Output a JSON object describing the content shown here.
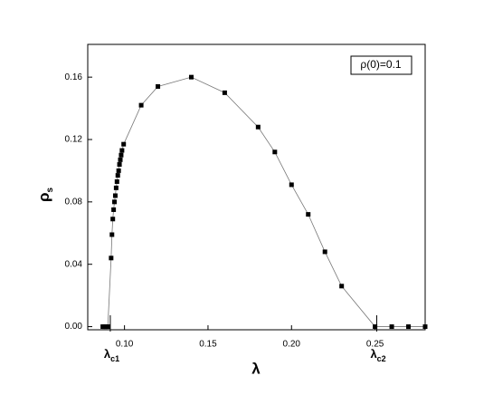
{
  "chart_data": {
    "type": "scatter-line",
    "x_label": "λ",
    "y_label": {
      "text": "ρ",
      "subscript": "s"
    },
    "legend_text": "ρ(0)=0.1",
    "xlim": [
      0.078,
      0.28
    ],
    "ylim": [
      -0.002,
      0.181
    ],
    "xticks": [
      {
        "value": 0.1,
        "label": "0.10"
      },
      {
        "value": 0.15,
        "label": "0.15"
      },
      {
        "value": 0.2,
        "label": "0.20"
      },
      {
        "value": 0.25,
        "label": "0.25"
      }
    ],
    "yticks": [
      {
        "value": 0,
        "label": "0.00"
      },
      {
        "value": 0.04,
        "label": "0.04"
      },
      {
        "value": 0.08,
        "label": "0.08"
      },
      {
        "value": 0.12,
        "label": "0.12"
      },
      {
        "value": 0.16,
        "label": "0.16"
      }
    ],
    "annotations": [
      {
        "text": "λ",
        "subscript": "c1",
        "x": 0.0915
      },
      {
        "text": "λ",
        "subscript": "c2",
        "x": 0.251
      }
    ],
    "series": [
      {
        "color": "#000000",
        "x": [
          0.087,
          0.088,
          0.089,
          0.09,
          0.092,
          0.0925,
          0.093,
          0.0935,
          0.094,
          0.0945,
          0.095,
          0.0955,
          0.096,
          0.0965,
          0.097,
          0.0975,
          0.098,
          0.0985,
          0.0995,
          0.11,
          0.12,
          0.14,
          0.16,
          0.18,
          0.19,
          0.2,
          0.21,
          0.22,
          0.23,
          0.25,
          0.26,
          0.27,
          0.28
        ],
        "values": [
          0,
          0,
          0,
          0,
          0.044,
          0.059,
          0.069,
          0.075,
          0.08,
          0.084,
          0.089,
          0.093,
          0.097,
          0.1,
          0.104,
          0.107,
          0.11,
          0.113,
          0.117,
          0.142,
          0.154,
          0.16,
          0.15,
          0.128,
          0.112,
          0.091,
          0.072,
          0.048,
          0.026,
          0,
          0,
          0,
          0
        ]
      }
    ]
  }
}
